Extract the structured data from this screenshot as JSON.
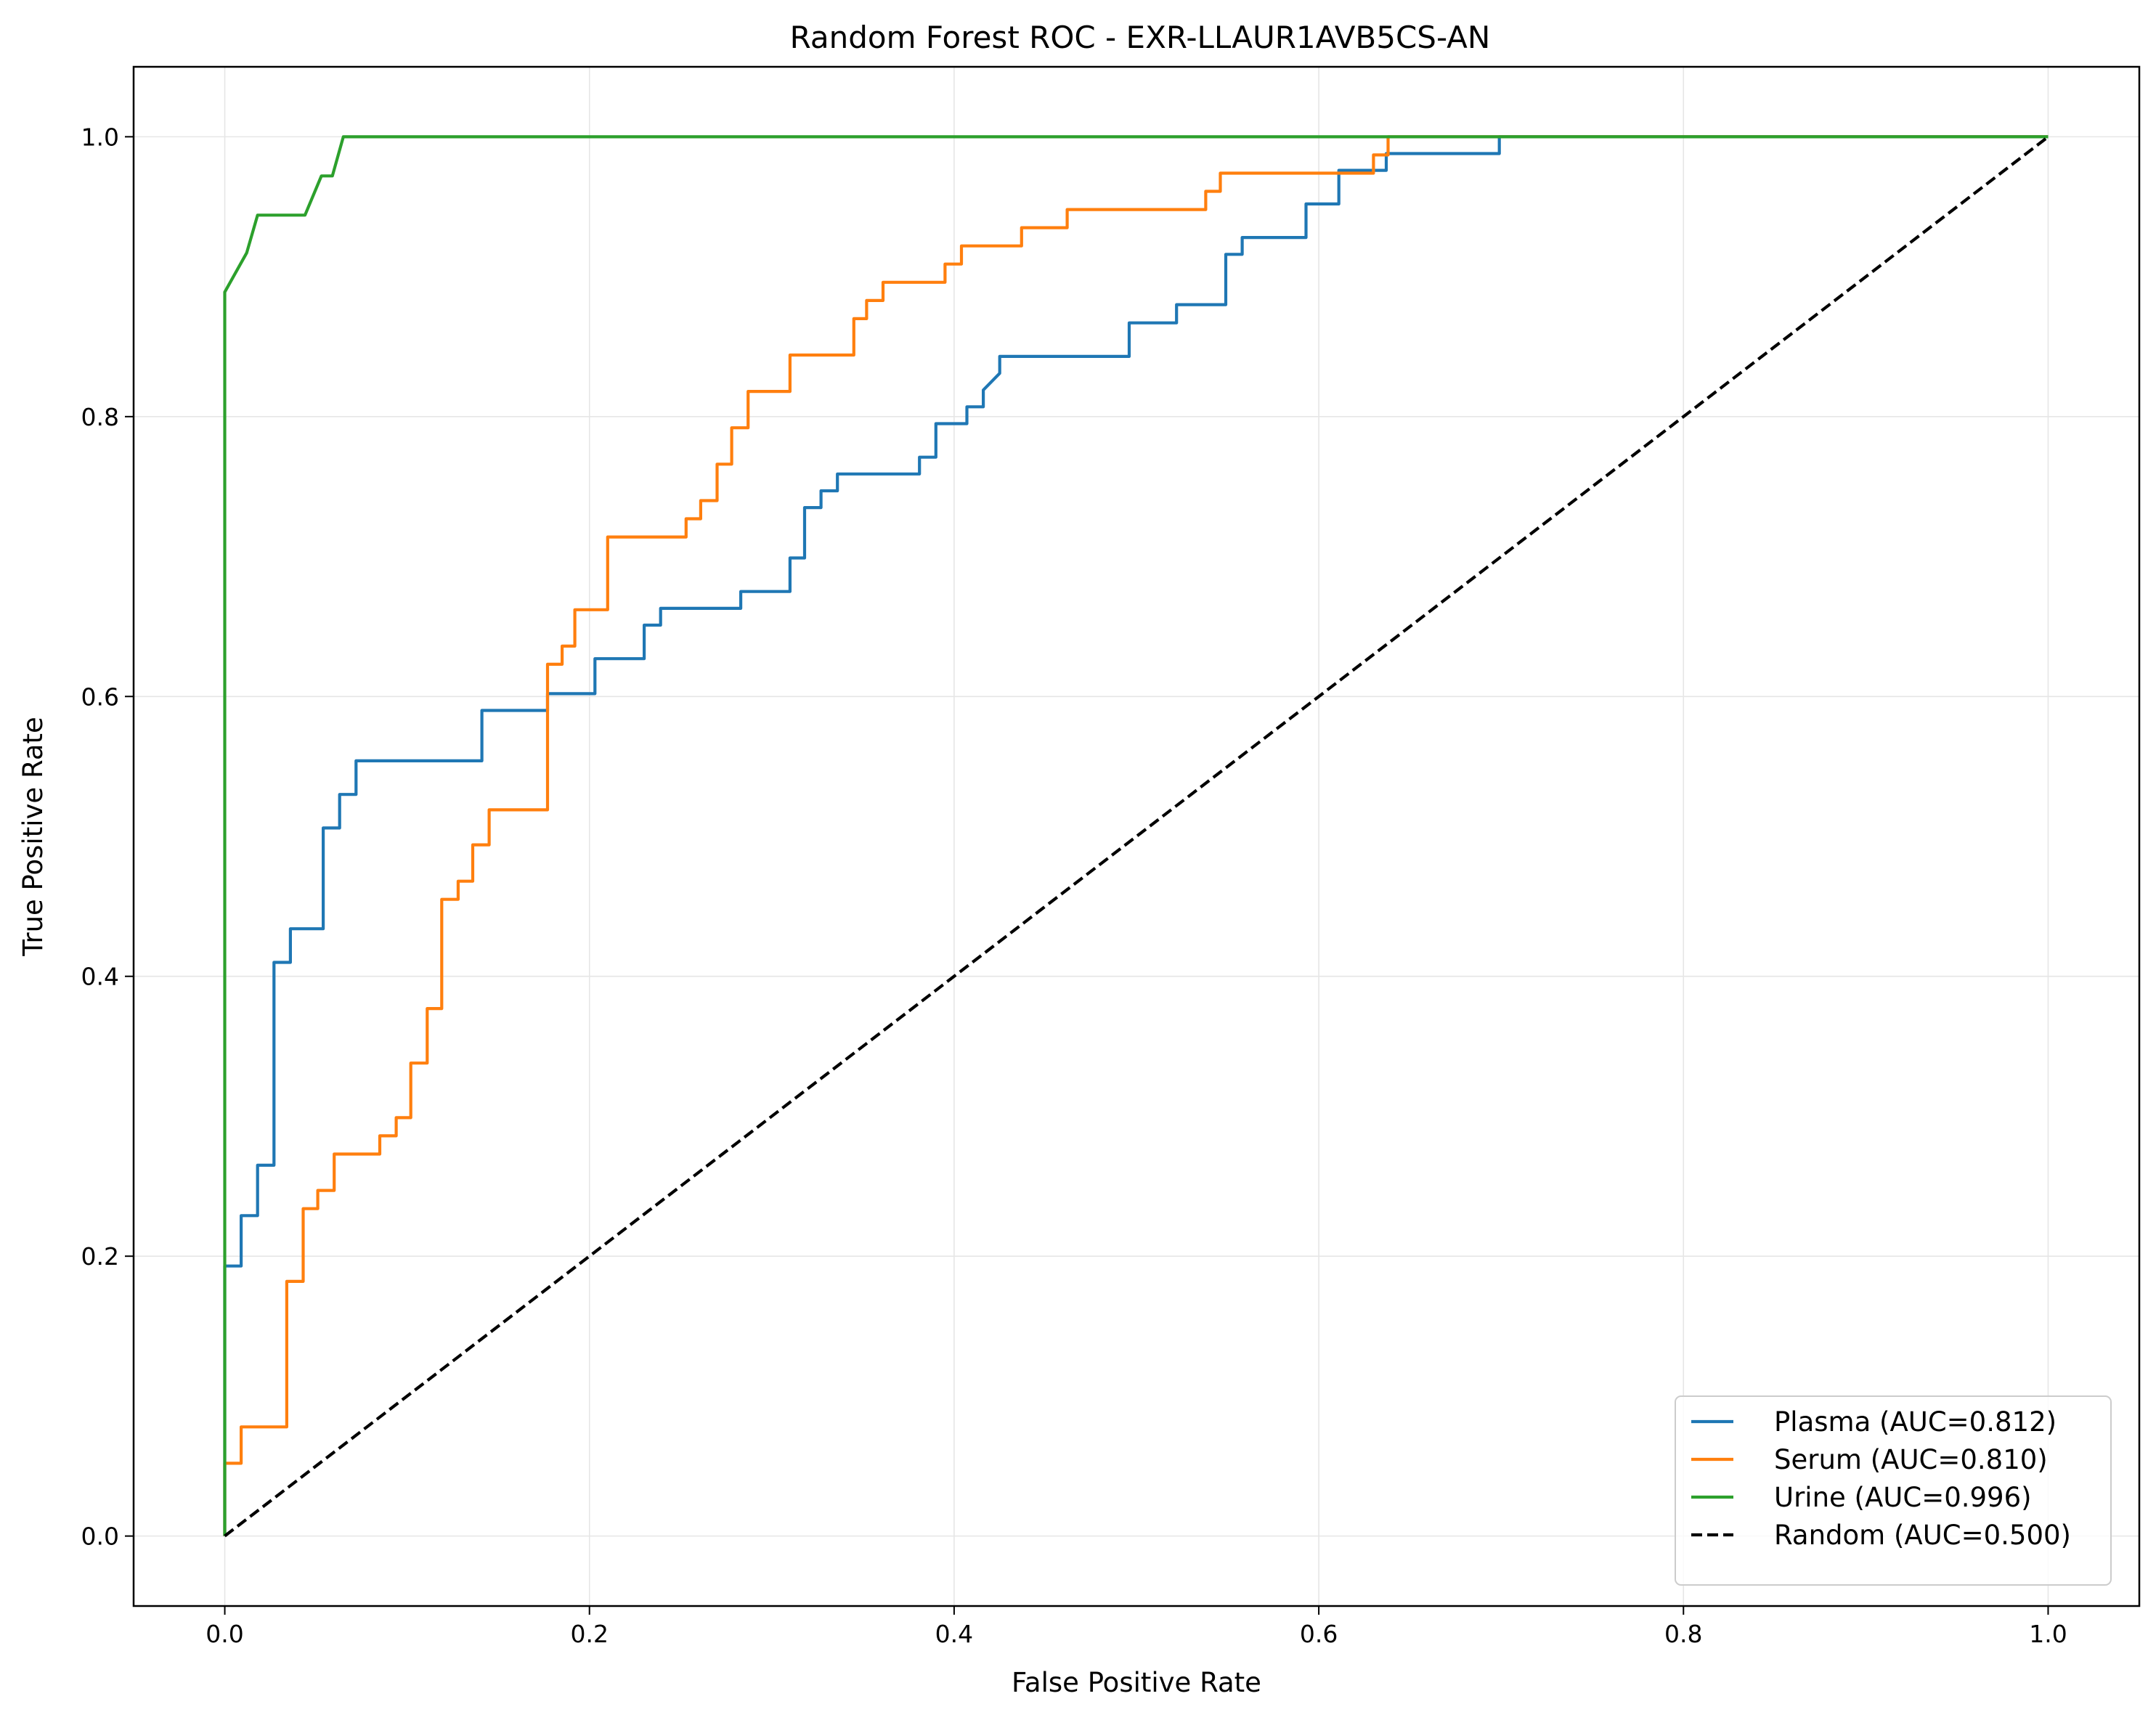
{
  "chart_data": {
    "type": "line",
    "title": "Random Forest ROC - EXR-LLAUR1AVB5CS-AN",
    "xlabel": "False Positive Rate",
    "ylabel": "True Positive Rate",
    "xlim": [
      -0.05,
      1.05
    ],
    "ylim": [
      -0.05,
      1.05
    ],
    "xticks": [
      0.0,
      0.2,
      0.4,
      0.6,
      0.8,
      1.0
    ],
    "yticks": [
      0.0,
      0.2,
      0.4,
      0.6,
      0.8,
      1.0
    ],
    "xtick_labels": [
      "0.0",
      "0.2",
      "0.4",
      "0.6",
      "0.8",
      "1.0"
    ],
    "ytick_labels": [
      "0.0",
      "0.2",
      "0.4",
      "0.6",
      "0.8",
      "1.0"
    ],
    "grid": true,
    "legend_position": "lower-right",
    "series": [
      {
        "name": "Plasma (AUC=0.812)",
        "color": "#1f77b4",
        "dash": "solid",
        "x": [
          0.0,
          0.0,
          0.009,
          0.009,
          0.018,
          0.018,
          0.027,
          0.027,
          0.036,
          0.036,
          0.054,
          0.054,
          0.063,
          0.063,
          0.072,
          0.072,
          0.141,
          0.141,
          0.177,
          0.177,
          0.203,
          0.203,
          0.23,
          0.23,
          0.239,
          0.239,
          0.283,
          0.283,
          0.31,
          0.31,
          0.318,
          0.318,
          0.327,
          0.327,
          0.336,
          0.336,
          0.381,
          0.381,
          0.39,
          0.39,
          0.407,
          0.407,
          0.416,
          0.416,
          0.425,
          0.425,
          0.496,
          0.496,
          0.522,
          0.522,
          0.549,
          0.549,
          0.558,
          0.558,
          0.593,
          0.593,
          0.611,
          0.611,
          0.637,
          0.637,
          0.699,
          0.699,
          1.0
        ],
        "y": [
          0.0,
          0.193,
          0.193,
          0.229,
          0.229,
          0.265,
          0.265,
          0.41,
          0.41,
          0.434,
          0.434,
          0.506,
          0.506,
          0.53,
          0.53,
          0.554,
          0.554,
          0.59,
          0.59,
          0.602,
          0.602,
          0.627,
          0.627,
          0.651,
          0.651,
          0.663,
          0.663,
          0.675,
          0.675,
          0.699,
          0.699,
          0.735,
          0.735,
          0.747,
          0.747,
          0.759,
          0.759,
          0.771,
          0.771,
          0.795,
          0.795,
          0.807,
          0.807,
          0.819,
          0.831,
          0.843,
          0.843,
          0.867,
          0.867,
          0.88,
          0.88,
          0.916,
          0.916,
          0.928,
          0.928,
          0.952,
          0.952,
          0.976,
          0.976,
          0.988,
          0.988,
          1.0,
          1.0
        ]
      },
      {
        "name": "Serum (AUC=0.810)",
        "color": "#ff7f0e",
        "dash": "solid",
        "x": [
          0.0,
          0.0,
          0.009,
          0.009,
          0.034,
          0.034,
          0.043,
          0.043,
          0.051,
          0.051,
          0.06,
          0.06,
          0.085,
          0.085,
          0.094,
          0.094,
          0.102,
          0.102,
          0.111,
          0.111,
          0.119,
          0.119,
          0.128,
          0.128,
          0.136,
          0.136,
          0.145,
          0.145,
          0.177,
          0.177,
          0.185,
          0.185,
          0.192,
          0.192,
          0.21,
          0.21,
          0.253,
          0.253,
          0.261,
          0.261,
          0.27,
          0.27,
          0.278,
          0.278,
          0.287,
          0.287,
          0.31,
          0.31,
          0.345,
          0.345,
          0.352,
          0.352,
          0.361,
          0.361,
          0.395,
          0.395,
          0.404,
          0.404,
          0.437,
          0.437,
          0.462,
          0.462,
          0.538,
          0.538,
          0.546,
          0.546,
          0.63,
          0.63,
          0.638,
          0.638,
          0.655,
          0.663,
          1.0
        ],
        "y": [
          0.0,
          0.052,
          0.052,
          0.078,
          0.078,
          0.182,
          0.182,
          0.234,
          0.234,
          0.247,
          0.247,
          0.273,
          0.273,
          0.286,
          0.286,
          0.299,
          0.299,
          0.338,
          0.338,
          0.377,
          0.377,
          0.455,
          0.455,
          0.468,
          0.468,
          0.494,
          0.494,
          0.519,
          0.519,
          0.623,
          0.623,
          0.636,
          0.636,
          0.662,
          0.662,
          0.714,
          0.714,
          0.727,
          0.727,
          0.74,
          0.74,
          0.766,
          0.766,
          0.792,
          0.792,
          0.818,
          0.818,
          0.844,
          0.844,
          0.87,
          0.87,
          0.883,
          0.883,
          0.896,
          0.896,
          0.909,
          0.909,
          0.922,
          0.922,
          0.935,
          0.935,
          0.948,
          0.948,
          0.961,
          0.961,
          0.974,
          0.974,
          0.987,
          0.987,
          1.0,
          1.0,
          1.0,
          1.0
        ]
      },
      {
        "name": "Urine (AUC=0.996)",
        "color": "#2ca02c",
        "dash": "solid",
        "x": [
          0.0,
          0.0,
          0.012,
          0.018,
          0.044,
          0.053,
          0.059,
          0.065,
          1.0
        ],
        "y": [
          0.0,
          0.889,
          0.917,
          0.944,
          0.944,
          0.972,
          0.972,
          1.0,
          1.0
        ]
      },
      {
        "name": "Random (AUC=0.500)",
        "color": "#000000",
        "dash": "dashed",
        "x": [
          0.0,
          1.0
        ],
        "y": [
          0.0,
          1.0
        ]
      }
    ]
  }
}
